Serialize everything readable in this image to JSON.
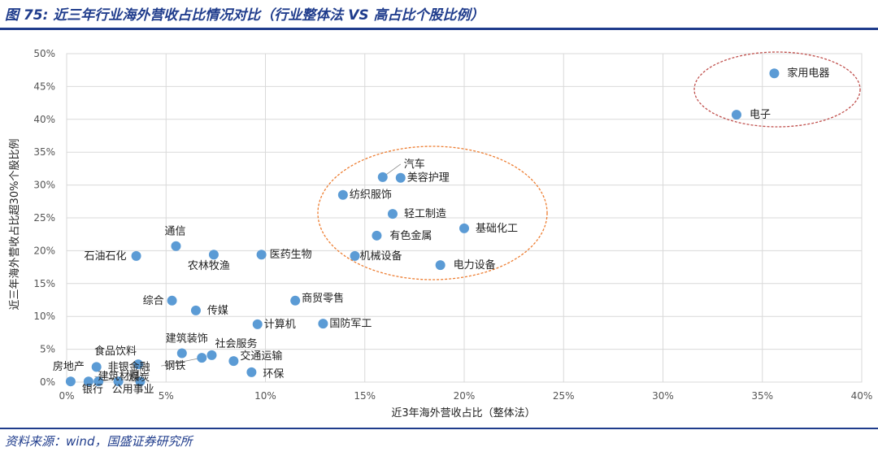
{
  "figure_title": "图 75: 近三年行业海外营收占比情况对比（行业整体法 VS 高占比个股比例）",
  "source": "资料来源：wind，国盛证券研究所",
  "colors": {
    "accent": "#1f3c8c",
    "point": "#5b9bd5",
    "highlight_ellipse": "#c0504d",
    "group_ellipse": "#ed7d31",
    "grid": "#d9d9d9"
  },
  "chart_data": {
    "type": "scatter",
    "title": "",
    "xlabel": "近3年海外营收占比（整体法）",
    "ylabel": "近三年海外营收占比超30%个股比例",
    "xlim": [
      0,
      40
    ],
    "ylim": [
      0,
      50
    ],
    "x_ticks": [
      "0%",
      "5%",
      "10%",
      "15%",
      "20%",
      "25%",
      "30%",
      "35%",
      "40%"
    ],
    "y_ticks": [
      "0%",
      "5%",
      "10%",
      "15%",
      "20%",
      "25%",
      "30%",
      "35%",
      "40%",
      "45%",
      "50%"
    ],
    "grid": true,
    "points": [
      {
        "name": "家用电器",
        "x": 35.6,
        "y": 47.0
      },
      {
        "name": "电子",
        "x": 33.7,
        "y": 40.7
      },
      {
        "name": "汽车",
        "x": 15.9,
        "y": 31.2
      },
      {
        "name": "美容护理",
        "x": 16.8,
        "y": 31.1
      },
      {
        "name": "纺织服饰",
        "x": 13.9,
        "y": 28.5
      },
      {
        "name": "轻工制造",
        "x": 16.4,
        "y": 25.6
      },
      {
        "name": "基础化工",
        "x": 20.0,
        "y": 23.4
      },
      {
        "name": "有色金属",
        "x": 15.6,
        "y": 22.3
      },
      {
        "name": "通信",
        "x": 5.5,
        "y": 20.7
      },
      {
        "name": "石油石化",
        "x": 3.5,
        "y": 19.2
      },
      {
        "name": "农林牧渔",
        "x": 7.4,
        "y": 19.4
      },
      {
        "name": "医药生物",
        "x": 9.8,
        "y": 19.4
      },
      {
        "name": "机械设备",
        "x": 14.5,
        "y": 19.2
      },
      {
        "name": "电力设备",
        "x": 18.8,
        "y": 17.8
      },
      {
        "name": "综合",
        "x": 5.3,
        "y": 12.4
      },
      {
        "name": "商贸零售",
        "x": 11.5,
        "y": 12.4
      },
      {
        "name": "传媒",
        "x": 6.5,
        "y": 10.9
      },
      {
        "name": "计算机",
        "x": 9.6,
        "y": 8.8
      },
      {
        "name": "国防军工",
        "x": 12.9,
        "y": 8.9
      },
      {
        "name": "建筑装饰",
        "x": 5.8,
        "y": 4.4
      },
      {
        "name": "社会服务",
        "x": 7.3,
        "y": 4.1
      },
      {
        "name": "钢铁",
        "x": 6.8,
        "y": 3.7
      },
      {
        "name": "交通运输",
        "x": 8.4,
        "y": 3.2
      },
      {
        "name": "环保",
        "x": 9.3,
        "y": 1.5
      },
      {
        "name": "食品饮料",
        "x": 3.6,
        "y": 2.7
      },
      {
        "name": "非银金融",
        "x": 1.5,
        "y": 2.3
      },
      {
        "name": "房地产",
        "x": 0.2,
        "y": 0.1
      },
      {
        "name": "银行",
        "x": 1.1,
        "y": 0.1
      },
      {
        "name": "煤炭",
        "x": 1.6,
        "y": 0.1
      },
      {
        "name": "公用事业",
        "x": 2.6,
        "y": 0.1
      },
      {
        "name": "建筑材料",
        "x": 3.7,
        "y": 0.1
      }
    ]
  }
}
